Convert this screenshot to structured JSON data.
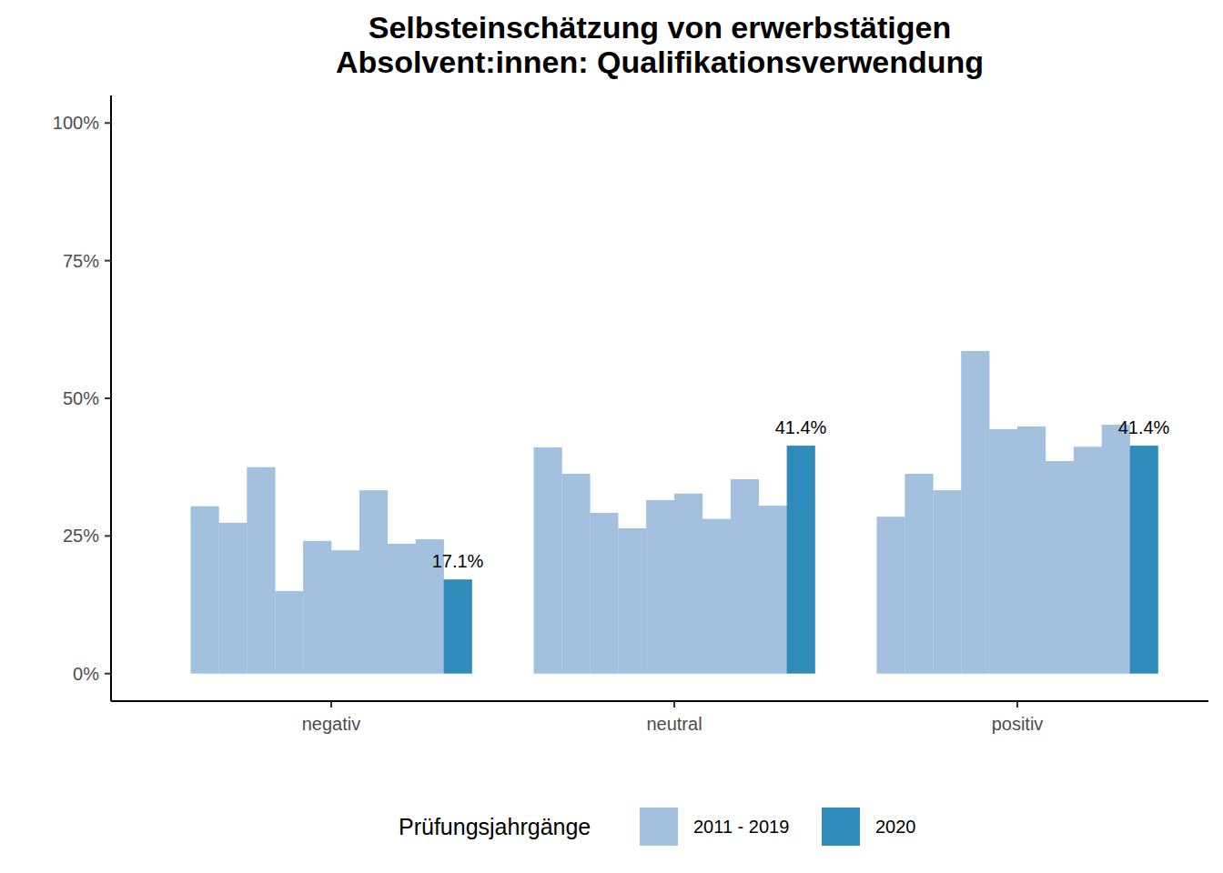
{
  "chart_data": {
    "type": "bar",
    "title": "Selbsteinschätzung von erwerbstätigen\nAbsolvent:innen: Qualifikationsverwendung",
    "legend_title": "Prüfungsjahrgänge",
    "legend": "bottom",
    "grid": false,
    "data_labels": true,
    "categories": [
      "negativ",
      "neutral",
      "positiv"
    ],
    "ylim": [
      -5,
      105
    ],
    "yticks": [
      {
        "value": 0,
        "label": "0%"
      },
      {
        "value": 25,
        "label": "25%"
      },
      {
        "value": 50,
        "label": "50%"
      },
      {
        "value": 75,
        "label": "75%"
      },
      {
        "value": 100,
        "label": "100%"
      }
    ],
    "series": [
      {
        "name": "2011 - 2019",
        "color": "#a3c1de",
        "values": [
          30.4,
          41.1,
          28.5
        ]
      },
      {
        "color": "#a3c1de",
        "values": [
          27.4,
          36.3,
          36.3
        ]
      },
      {
        "color": "#a3c1de",
        "values": [
          37.5,
          29.2,
          33.3
        ]
      },
      {
        "color": "#a3c1de",
        "values": [
          15.0,
          26.4,
          58.6
        ]
      },
      {
        "color": "#a3c1de",
        "values": [
          24.1,
          31.5,
          44.4
        ]
      },
      {
        "color": "#a3c1de",
        "values": [
          22.4,
          32.7,
          44.9
        ]
      },
      {
        "color": "#a3c1de",
        "values": [
          33.3,
          28.1,
          38.6
        ]
      },
      {
        "color": "#a3c1de",
        "values": [
          23.6,
          35.3,
          41.2
        ]
      },
      {
        "color": "#a3c1de",
        "values": [
          24.4,
          30.5,
          45.2
        ]
      },
      {
        "name": "2020",
        "color": "#2f8bb9",
        "values": [
          17.1,
          41.4,
          41.4
        ],
        "value_labels": [
          "17.1%",
          "41.4%",
          "41.4%"
        ]
      }
    ]
  }
}
